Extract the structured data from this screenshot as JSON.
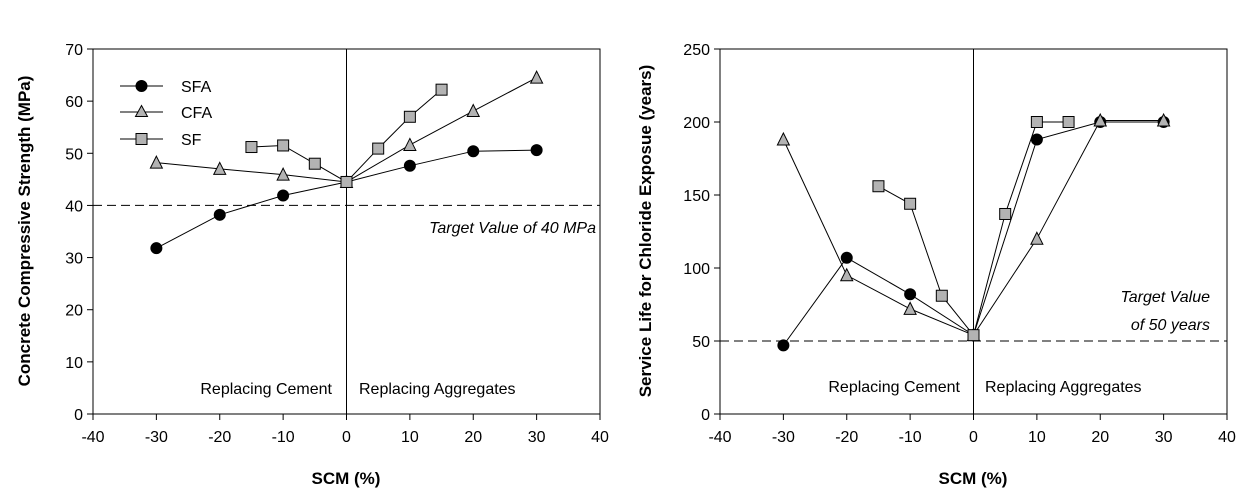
{
  "chart_data": [
    {
      "type": "line",
      "xlabel": "SCM (%)",
      "ylabel": "Concrete Compressive Strength (MPa)",
      "xlim": [
        -40,
        40
      ],
      "ylim": [
        0,
        70
      ],
      "xticks": [
        "-40",
        "-30",
        "-20",
        "-10",
        "0",
        "10",
        "20",
        "30",
        "40"
      ],
      "yticks": [
        "0",
        "10",
        "20",
        "30",
        "40",
        "50",
        "60",
        "70"
      ],
      "legend_position": "top-left",
      "target": {
        "value": 40,
        "label": "Target Value of 40 MPa"
      },
      "region_labels": {
        "left": "Replacing Cement",
        "right": "Replacing Aggregates"
      },
      "series": [
        {
          "name": "SFA",
          "marker": "circle",
          "color": "#000000",
          "points": [
            [
              -30,
              31.8
            ],
            [
              -20,
              38.2
            ],
            [
              -10,
              41.9
            ],
            [
              0,
              44.5
            ],
            [
              10,
              47.6
            ],
            [
              20,
              50.4
            ],
            [
              30,
              50.6
            ]
          ]
        },
        {
          "name": "CFA",
          "marker": "triangle",
          "color": "#b3b3b3",
          "points": [
            [
              -30,
              48.2
            ],
            [
              -20,
              47.0
            ],
            [
              -10,
              45.9
            ],
            [
              0,
              44.5
            ],
            [
              10,
              51.6
            ],
            [
              20,
              58.1
            ],
            [
              30,
              64.5
            ]
          ]
        },
        {
          "name": "SF",
          "marker": "square",
          "color": "#b3b3b3",
          "points": [
            [
              -15,
              51.2
            ],
            [
              -10,
              51.5
            ],
            [
              -5,
              48.0
            ],
            [
              0,
              44.5
            ],
            [
              5,
              50.9
            ],
            [
              10,
              57.0
            ],
            [
              15,
              62.2
            ]
          ]
        }
      ]
    },
    {
      "type": "line",
      "xlabel": "SCM (%)",
      "ylabel": "Service Life for Chloride Exposue (years)",
      "xlim": [
        -40,
        40
      ],
      "ylim": [
        0,
        250
      ],
      "xticks": [
        "-40",
        "-30",
        "-20",
        "-10",
        "0",
        "10",
        "20",
        "30",
        "40"
      ],
      "yticks": [
        "0",
        "50",
        "100",
        "150",
        "200",
        "250"
      ],
      "target": {
        "value": 50,
        "label_line1": "Target Value",
        "label_line2": "of 50 years"
      },
      "region_labels": {
        "left": "Replacing Cement",
        "right": "Replacing Aggregates"
      },
      "series": [
        {
          "name": "SFA",
          "marker": "circle",
          "color": "#000000",
          "points": [
            [
              -30,
              47
            ],
            [
              -20,
              107
            ],
            [
              -10,
              82
            ],
            [
              0,
              54
            ],
            [
              10,
              188
            ],
            [
              20,
              200
            ],
            [
              30,
              200
            ]
          ]
        },
        {
          "name": "CFA",
          "marker": "triangle",
          "color": "#b3b3b3",
          "points": [
            [
              -30,
              188
            ],
            [
              -20,
              95
            ],
            [
              -10,
              72
            ],
            [
              0,
              54
            ],
            [
              10,
              120
            ],
            [
              20,
              201
            ],
            [
              30,
              201
            ]
          ]
        },
        {
          "name": "SF",
          "marker": "square",
          "color": "#b3b3b3",
          "points": [
            [
              -15,
              156
            ],
            [
              -10,
              144
            ],
            [
              -5,
              81
            ],
            [
              0,
              54
            ],
            [
              5,
              137
            ],
            [
              10,
              200
            ],
            [
              15,
              200
            ]
          ]
        }
      ]
    }
  ]
}
